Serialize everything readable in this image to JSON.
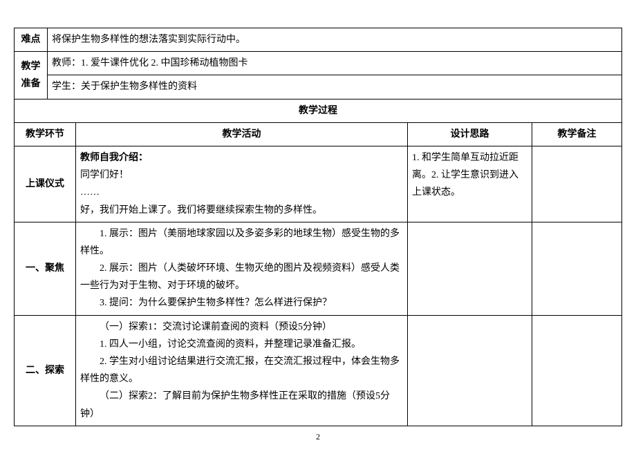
{
  "row_difficulty": {
    "label": "难点",
    "content": "将保护生物多样性的想法落实到实际行动中。"
  },
  "row_prep": {
    "label": "教学准备",
    "teacher": "教师：1. 爱牛课件优化   2. 中国珍稀动植物图卡",
    "student": "学生：关于保护生物多样性的资料"
  },
  "process_header": "教学过程",
  "process_cols": {
    "phase": "教学环节",
    "activity": "教学活动",
    "rationale": "设计思路",
    "notes": "教学备注"
  },
  "row_ceremony": {
    "phase": "上课仪式",
    "activity_bold": "教师自我介绍：",
    "activity_line1": "同学们好！",
    "activity_line2": "……",
    "activity_line3": "好，我们开始上课了。我们将要继续探索生物的多样性。",
    "rationale": "1. 和学生简单互动拉近距离。2. 让学生意识到进入上课状态。"
  },
  "row_focus": {
    "phase": "一、聚焦",
    "line1": "1. 展示：图片（美丽地球家园以及多姿多彩的地球生物）感受生物的多样性。",
    "line2": "2. 展示：图片（人类破坏环境、生物灭绝的图片及视频资料）感受人类一些行为对于生物、对于环境的破坏。",
    "line3": "3. 提问：为什么要保护生物多样性？怎么样进行保护？"
  },
  "row_explore": {
    "phase": "二、探索",
    "line1": "（一）探索1：交流讨论课前查阅的资料（预设5分钟）",
    "line2": "1. 四人一小组，讨论交流查阅的资料，并整理记录准备汇报。",
    "line3": "2. 学生对小组讨论结果进行交流汇报，在交流汇报过程中，体会生物多样性的意义。",
    "line4": "（二）探索2：了解目前为保护生物多样性正在采取的措施（预设5分钟）"
  },
  "page_number": "2"
}
